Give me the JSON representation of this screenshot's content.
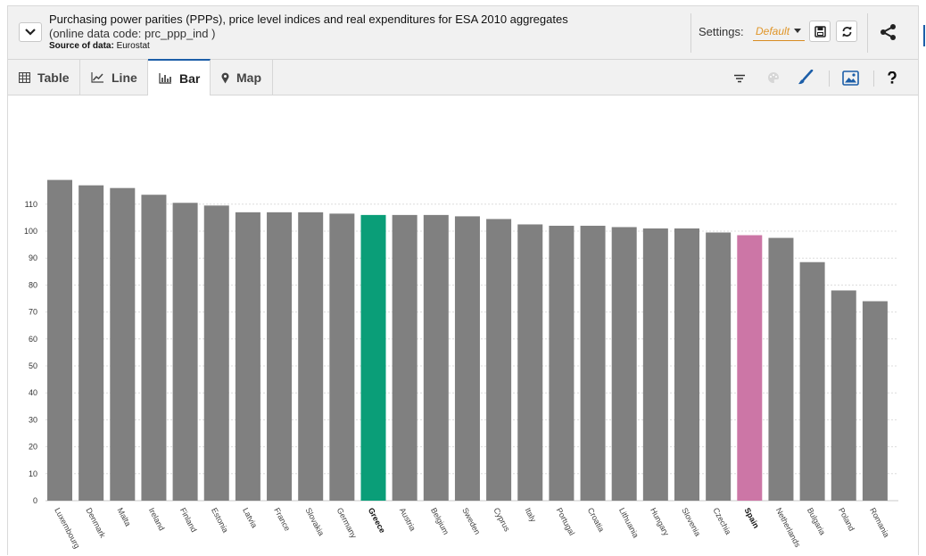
{
  "header": {
    "title": "Purchasing power parities (PPPs), price level indices and real expenditures for ESA 2010 aggregates",
    "subtitle": "(online data code: prc_ppp_ind )",
    "source_label": "Source of data:",
    "source_value": "Eurostat",
    "settings_label": "Settings:",
    "settings_value": "Default"
  },
  "tabs": [
    {
      "label": "Table",
      "icon": "table-icon"
    },
    {
      "label": "Line",
      "icon": "line-chart-icon"
    },
    {
      "label": "Bar",
      "icon": "bar-chart-icon",
      "active": true
    },
    {
      "label": "Map",
      "icon": "map-pin-icon"
    }
  ],
  "colors": {
    "bar_default": "#808080",
    "bar_greece": "#0a9e78",
    "bar_spain": "#cc76a6",
    "accent_blue": "#1c5ea8",
    "settings_orange": "#e0962a"
  },
  "chart_data": {
    "type": "bar",
    "categories": [
      "Luxembourg",
      "Denmark",
      "Malta",
      "Ireland",
      "Finland",
      "Estonia",
      "Latvia",
      "France",
      "Slovakia",
      "Germany",
      "Greece",
      "Austria",
      "Belgium",
      "Sweden",
      "Cyprus",
      "Italy",
      "Portugal",
      "Croatia",
      "Lithuania",
      "Hungary",
      "Slovenia",
      "Czechia",
      "Spain",
      "Netherlands",
      "Bulgaria",
      "Poland",
      "Romania"
    ],
    "values": [
      119,
      117,
      116,
      113.5,
      110.5,
      109.5,
      107,
      107,
      107,
      106.5,
      106,
      106,
      106,
      105.5,
      104.5,
      102.5,
      102,
      102,
      101.5,
      101,
      101,
      99.5,
      98.5,
      97.5,
      88.5,
      78,
      74
    ],
    "highlighted": {
      "Greece": "#0a9e78",
      "Spain": "#cc76a6"
    },
    "bold_labels": [
      "Greece",
      "Spain"
    ],
    "yticks": [
      0,
      10,
      20,
      30,
      40,
      50,
      60,
      70,
      80,
      90,
      100,
      110
    ],
    "ylim": [
      0,
      130
    ],
    "grid": true,
    "title": "",
    "xlabel": "",
    "ylabel": ""
  }
}
